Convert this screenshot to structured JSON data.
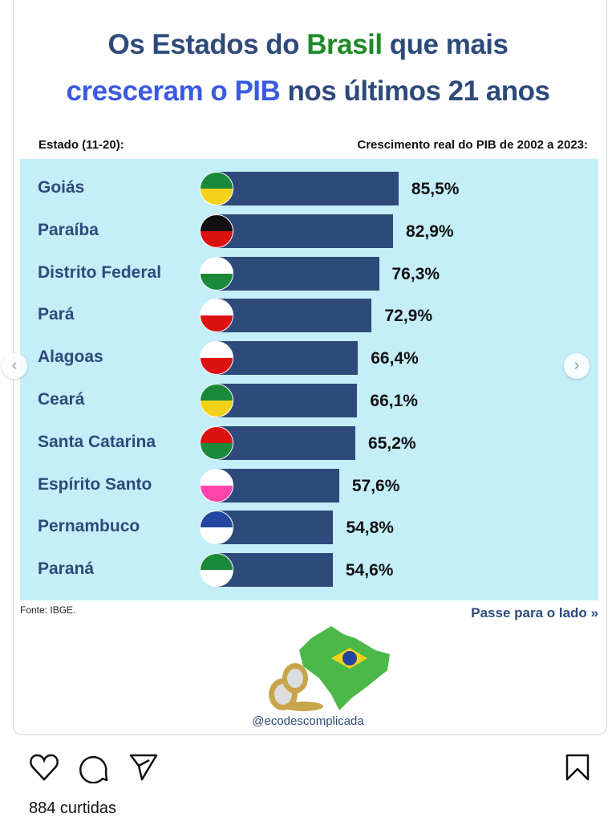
{
  "title": {
    "line1_a": "Os Estados do ",
    "line1_b": "Brasil",
    "line1_c": " que mais",
    "line2_a": "cresceram o PIB",
    "line2_b": " nos últimos 21 anos"
  },
  "header": {
    "left": "Estado (11-20):",
    "right": "Crescimento real do PIB de 2002 a 2023:"
  },
  "colors": {
    "bar": "#2e4a7a",
    "background": "#c4eef8",
    "title_green": "#1e8a26",
    "title_blue": "#3a5be0"
  },
  "chart_data": {
    "type": "bar",
    "orientation": "horizontal",
    "categories": [
      "Goiás",
      "Paraíba",
      "Distrito Federal",
      "Pará",
      "Alagoas",
      "Ceará",
      "Santa Catarina",
      "Espírito Santo",
      "Pernambuco",
      "Paraná"
    ],
    "values": [
      85.5,
      82.9,
      76.3,
      72.9,
      66.4,
      66.1,
      65.2,
      57.6,
      54.8,
      54.6
    ],
    "labels": [
      "85,5%",
      "82,9%",
      "76,3%",
      "72,9%",
      "66,4%",
      "66,1%",
      "65,2%",
      "57,6%",
      "54,8%",
      "54,6%"
    ]
  },
  "source": "Fonte: IBGE.",
  "swipe": "Passe para o lado »",
  "handle": "@ecodescomplicada",
  "likes": "884 curtidas"
}
